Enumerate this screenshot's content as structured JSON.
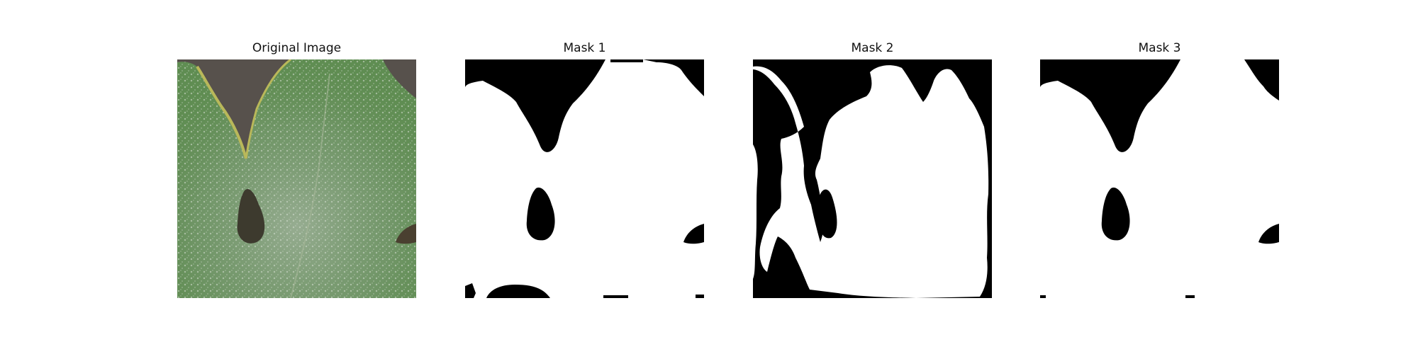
{
  "panels": [
    {
      "title": "Original Image",
      "kind": "photo"
    },
    {
      "title": "Mask 1",
      "kind": "mask"
    },
    {
      "title": "Mask 2",
      "kind": "mask"
    },
    {
      "title": "Mask 3",
      "kind": "mask"
    }
  ],
  "colors": {
    "mask_foreground": "#ffffff",
    "mask_background": "#000000",
    "leaf": "#5f8d52",
    "background_cloth": "#57514c"
  }
}
